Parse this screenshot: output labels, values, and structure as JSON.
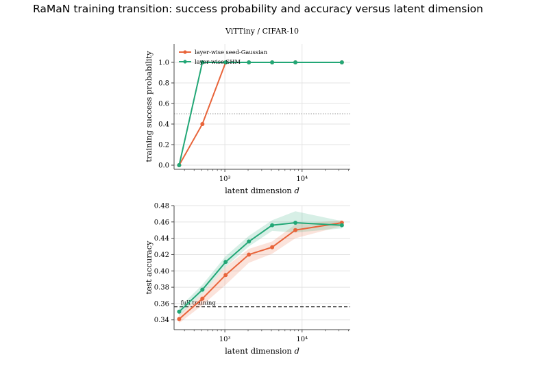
{
  "figure": {
    "title": "RaMaN training transition: success probability and accuracy versus latent dimension"
  },
  "colors": {
    "seed_gaussian": "#e8643a",
    "shm": "#22a776",
    "grid": "#e3e3e3",
    "axis": "#444444",
    "reference": "#222222"
  },
  "chart_data": [
    {
      "type": "line",
      "title": "ViTTiny / CIFAR-10",
      "xlabel": "latent dimension d",
      "ylabel": "training success probability",
      "xscale": "log",
      "xlim": [
        220,
        42000
      ],
      "ylim": [
        -0.04,
        1.18
      ],
      "yticks": [
        0.0,
        0.2,
        0.4,
        0.6,
        0.8,
        1.0
      ],
      "xticks": [
        {
          "value": 1000,
          "label": "10³"
        },
        {
          "value": 10000,
          "label": "10⁴"
        }
      ],
      "reference_line": {
        "y": 0.5,
        "style": "dotted",
        "label": ""
      },
      "legend_position": "top-left",
      "grid": true,
      "series": [
        {
          "name": "layer-wise seed-Gaussian",
          "x": [
            256,
            512,
            1024,
            2048,
            4096,
            8192,
            32768
          ],
          "y": [
            0.0,
            0.4,
            1.0,
            1.0,
            1.0,
            1.0,
            1.0
          ]
        },
        {
          "name": "layer-wise SHM",
          "x": [
            256,
            512,
            1024,
            2048,
            4096,
            8192,
            32768
          ],
          "y": [
            0.0,
            1.0,
            1.0,
            1.0,
            1.0,
            1.0,
            1.0
          ]
        }
      ]
    },
    {
      "type": "line",
      "title": "",
      "xlabel": "latent dimension d",
      "ylabel": "test accuracy",
      "xscale": "log",
      "xlim": [
        220,
        42000
      ],
      "ylim": [
        0.328,
        0.48
      ],
      "yticks": [
        0.34,
        0.36,
        0.38,
        0.4,
        0.42,
        0.44,
        0.46,
        0.48
      ],
      "xticks": [
        {
          "value": 1000,
          "label": "10³"
        },
        {
          "value": 10000,
          "label": "10⁴"
        }
      ],
      "reference_line": {
        "y": 0.356,
        "style": "dashed",
        "label": "full training"
      },
      "grid": true,
      "series": [
        {
          "name": "layer-wise seed-Gaussian",
          "x": [
            256,
            512,
            1024,
            2048,
            4096,
            8192,
            32768
          ],
          "y": [
            0.341,
            0.366,
            0.395,
            0.42,
            0.429,
            0.45,
            0.459
          ],
          "lower": [
            0.336,
            0.358,
            0.383,
            0.41,
            0.421,
            0.44,
            0.455
          ],
          "upper": [
            0.346,
            0.372,
            0.405,
            0.427,
            0.436,
            0.457,
            0.462
          ]
        },
        {
          "name": "layer-wise SHM",
          "x": [
            256,
            512,
            1024,
            2048,
            4096,
            8192,
            32768
          ],
          "y": [
            0.35,
            0.377,
            0.411,
            0.436,
            0.456,
            0.459,
            0.456
          ],
          "lower": [
            0.345,
            0.372,
            0.405,
            0.43,
            0.449,
            0.447,
            0.452
          ],
          "upper": [
            0.355,
            0.383,
            0.418,
            0.443,
            0.462,
            0.473,
            0.461
          ]
        }
      ]
    }
  ]
}
